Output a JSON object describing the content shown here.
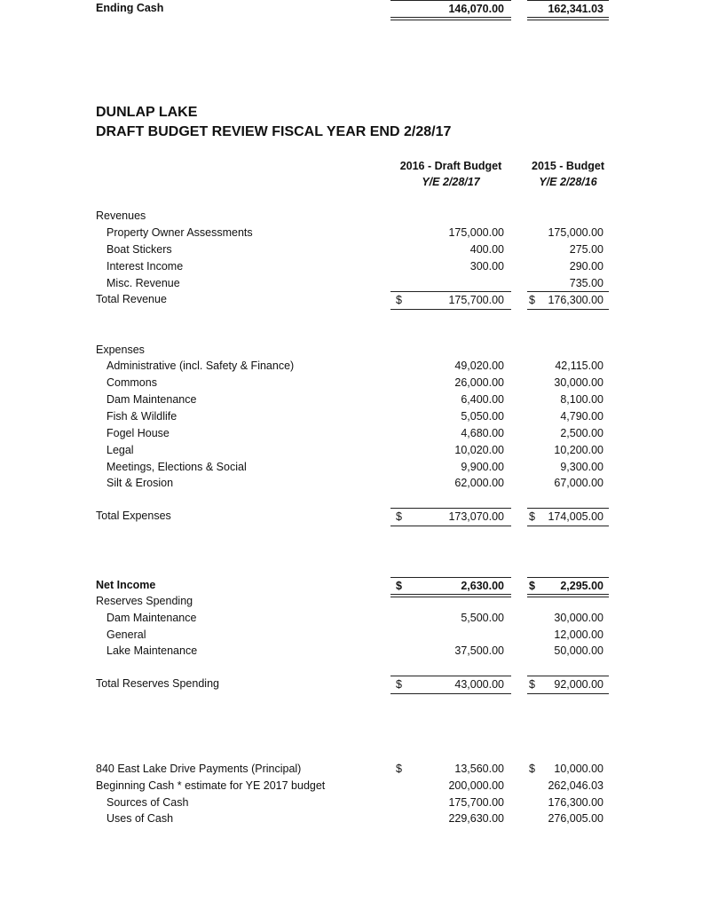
{
  "title_line1": "DUNLAP LAKE",
  "title_line2": "DRAFT BUDGET REVIEW FISCAL YEAR END 2/28/17",
  "columns": [
    {
      "heading": "2016 - Draft Budget",
      "subheading": "Y/E 2/28/17"
    },
    {
      "heading": "2015 - Budget",
      "subheading": "Y/E 2/28/16"
    }
  ],
  "rows": [
    {
      "label": "Revenues",
      "c1": "",
      "c2": ""
    },
    {
      "label": "Property Owner Assessments",
      "indent": true,
      "c1": "175,000.00",
      "c2": "175,000.00"
    },
    {
      "label": "Boat Stickers",
      "indent": true,
      "c1": "400.00",
      "c2": "275.00"
    },
    {
      "label": "Interest Income",
      "indent": true,
      "c1": "300.00",
      "c2": "290.00"
    },
    {
      "label": "Misc. Revenue",
      "indent": true,
      "c1": "",
      "c2": "735.00"
    },
    {
      "label": "Total Revenue",
      "c1": "175,700.00",
      "c1_cur": "$",
      "c2": "176,300.00",
      "c2_cur": "$",
      "style": "total"
    },
    {
      "label": "Expenses",
      "c1": "",
      "c2": ""
    },
    {
      "label": "Administrative (incl. Safety & Finance)",
      "indent": true,
      "c1": "49,020.00",
      "c2": "42,115.00"
    },
    {
      "label": "Commons",
      "indent": true,
      "c1": "26,000.00",
      "c2": "30,000.00"
    },
    {
      "label": "Dam Maintenance",
      "indent": true,
      "c1": "6,400.00",
      "c2": "8,100.00"
    },
    {
      "label": "Fish & Wildlife",
      "indent": true,
      "c1": "5,050.00",
      "c2": "4,790.00"
    },
    {
      "label": "Fogel House",
      "indent": true,
      "c1": "4,680.00",
      "c2": "2,500.00"
    },
    {
      "label": "Legal",
      "indent": true,
      "c1": "10,020.00",
      "c2": "10,200.00"
    },
    {
      "label": "Meetings, Elections & Social",
      "indent": true,
      "c1": "9,900.00",
      "c2": "9,300.00"
    },
    {
      "label": "Silt & Erosion",
      "indent": true,
      "c1": "62,000.00",
      "c2": "67,000.00"
    },
    {
      "label": "Total Expenses",
      "c1": "173,070.00",
      "c1_cur": "$",
      "c2": "174,005.00",
      "c2_cur": "$",
      "style": "total"
    },
    {
      "label": "Net Income",
      "bold": true,
      "c1": "2,630.00",
      "c1_cur": "$",
      "c2": "2,295.00",
      "c2_cur": "$",
      "style": "grand"
    },
    {
      "label": "Reserves Spending",
      "c1": "",
      "c2": ""
    },
    {
      "label": "Dam Maintenance",
      "indent": true,
      "c1": "5,500.00",
      "c2": "30,000.00"
    },
    {
      "label": "General",
      "indent": true,
      "c1": "",
      "c2": "12,000.00"
    },
    {
      "label": "Lake Maintenance",
      "indent": true,
      "c1": "37,500.00",
      "c2": "50,000.00"
    },
    {
      "label": "Total Reserves Spending",
      "c1": "43,000.00",
      "c1_cur": "$",
      "c2": "92,000.00",
      "c2_cur": "$",
      "style": "total"
    },
    {
      "label": "840 East Lake Drive Payments (Principal)",
      "c1": "13,560.00",
      "c1_cur": "$",
      "c2": "10,000.00",
      "c2_cur": "$"
    },
    {
      "label": "Beginning Cash * estimate for YE 2017 budget",
      "c1": "200,000.00",
      "c2": "262,046.03"
    },
    {
      "label": "Sources of Cash",
      "indent": true,
      "c1": "175,700.00",
      "c2": "176,300.00"
    },
    {
      "label": "Uses of Cash",
      "indent": true,
      "c1": "229,630.00",
      "c2": "276,005.00"
    },
    {
      "label": "Ending Cash",
      "bold": true,
      "c1": "146,070.00",
      "c2": "162,341.03",
      "style": "grand"
    }
  ]
}
